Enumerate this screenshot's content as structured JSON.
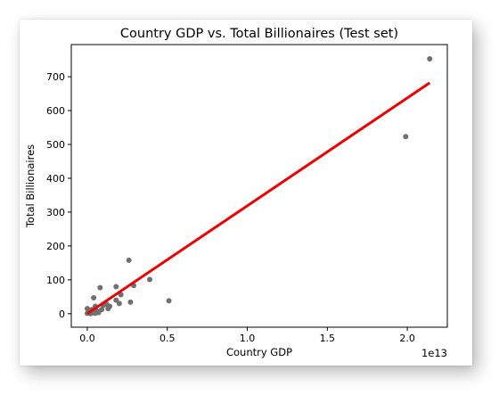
{
  "chart_data": {
    "type": "scatter",
    "title": "Country GDP vs. Total Billionaires (Test set)",
    "xlabel": "Country GDP",
    "ylabel": "Total Billionaires",
    "x_offset_label": "1e13",
    "xlim": [
      -0.1,
      2.25
    ],
    "ylim": [
      -40,
      795
    ],
    "xticks": [
      0.0,
      0.5,
      1.0,
      1.5,
      2.0
    ],
    "xtick_labels": [
      "0.0",
      "0.5",
      "1.0",
      "1.5",
      "2.0"
    ],
    "yticks": [
      0,
      100,
      200,
      300,
      400,
      500,
      600,
      700
    ],
    "ytick_labels": [
      "0",
      "100",
      "200",
      "300",
      "400",
      "500",
      "600",
      "700"
    ],
    "grid": false,
    "point_color": "#707070",
    "line_color": "#ee0000",
    "points": [
      {
        "x": 2.14,
        "y": 753
      },
      {
        "x": 1.99,
        "y": 523
      },
      {
        "x": 0.26,
        "y": 158
      },
      {
        "x": 0.39,
        "y": 101
      },
      {
        "x": 0.29,
        "y": 83
      },
      {
        "x": 0.18,
        "y": 80
      },
      {
        "x": 0.08,
        "y": 77
      },
      {
        "x": 0.21,
        "y": 56
      },
      {
        "x": 0.04,
        "y": 47
      },
      {
        "x": 0.18,
        "y": 40
      },
      {
        "x": 0.51,
        "y": 38
      },
      {
        "x": 0.27,
        "y": 34
      },
      {
        "x": 0.2,
        "y": 30
      },
      {
        "x": 0.12,
        "y": 28
      },
      {
        "x": 0.1,
        "y": 25
      },
      {
        "x": 0.14,
        "y": 22
      },
      {
        "x": 0.05,
        "y": 22
      },
      {
        "x": 0.13,
        "y": 15
      },
      {
        "x": 0.09,
        "y": 12
      },
      {
        "x": 0.0,
        "y": 15
      },
      {
        "x": 0.03,
        "y": 12
      },
      {
        "x": 0.06,
        "y": 8
      },
      {
        "x": 0.02,
        "y": 6
      },
      {
        "x": 0.04,
        "y": 5
      },
      {
        "x": 0.01,
        "y": 3
      },
      {
        "x": 0.07,
        "y": 3
      },
      {
        "x": 0.03,
        "y": 2
      },
      {
        "x": 0.0,
        "y": 1
      },
      {
        "x": 0.05,
        "y": 1
      },
      {
        "x": 0.02,
        "y": 0
      }
    ],
    "regression_line": {
      "x": [
        0.0,
        2.14
      ],
      "y": [
        0,
        682
      ]
    }
  }
}
